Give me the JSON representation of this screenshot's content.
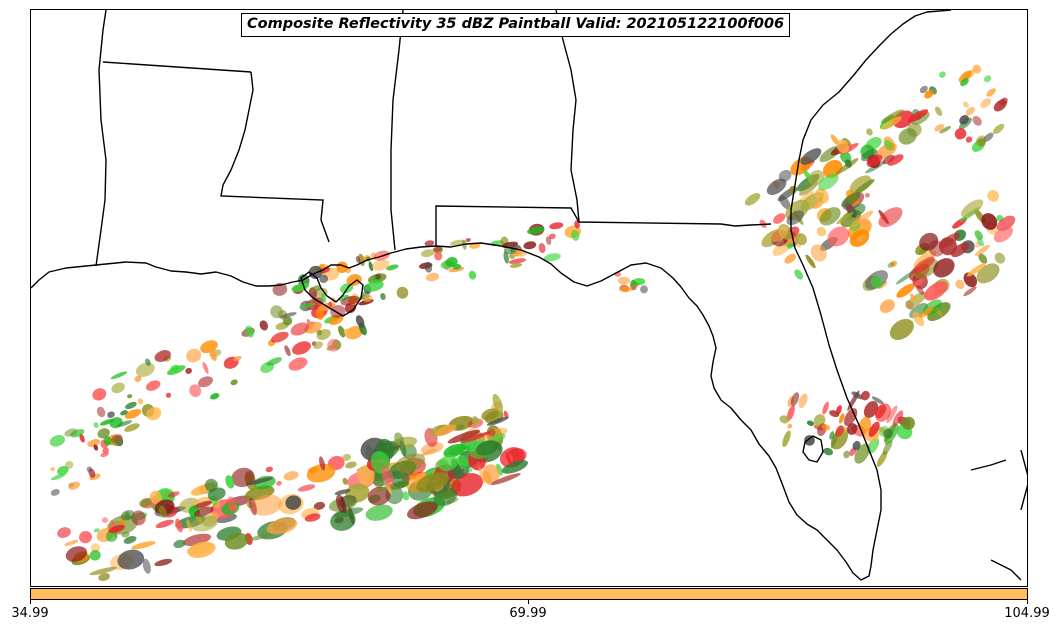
{
  "title": "Composite Reflectivity 35 dBZ Paintball Valid: 202105122100f006",
  "colorbar": {
    "color": "#FFBE5A",
    "ticks": [
      "34.99",
      "69.99",
      "104.99"
    ]
  },
  "map": {
    "region": "US Gulf Coast and Florida",
    "background": "#ffffff",
    "border_color": "#000000"
  },
  "paintball_colors": [
    "#E8242A",
    "#FF5A5A",
    "#8B1A1A",
    "#B03030",
    "#FF8C00",
    "#FFA040",
    "#FFB347",
    "#1DB81D",
    "#3AD43A",
    "#2E7D2E",
    "#8B8B1A",
    "#A8A83A",
    "#4D4D4D",
    "#6B8E23"
  ]
}
